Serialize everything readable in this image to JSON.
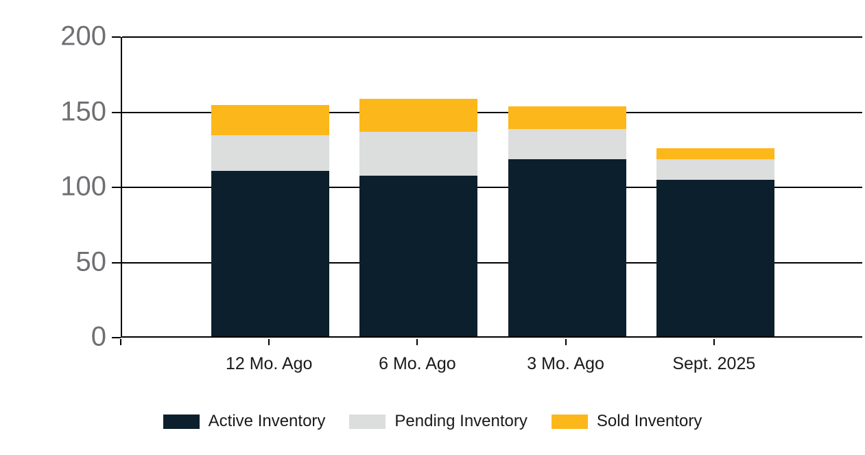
{
  "chart_data": {
    "type": "bar",
    "stacked": true,
    "title": "",
    "xlabel": "",
    "ylabel": "",
    "categories": [
      "12 Mo. Ago",
      "6 Mo. Ago",
      "3 Mo. Ago",
      "Sept. 2025"
    ],
    "series": [
      {
        "name": "Active Inventory",
        "color": "#0c1f2c",
        "values": [
          110,
          107,
          118,
          104
        ]
      },
      {
        "name": "Pending Inventory",
        "color": "#dcdddd",
        "values": [
          24,
          29,
          20,
          14
        ]
      },
      {
        "name": "Sold Inventory",
        "color": "#fcb71a",
        "values": [
          20,
          22,
          15,
          7
        ]
      }
    ],
    "totals": [
      154,
      158,
      153,
      125
    ],
    "ylim": [
      0,
      200
    ],
    "yticks": [
      0,
      50,
      100,
      150,
      200
    ],
    "ytick_labels": [
      "0",
      "50",
      "100",
      "150",
      "200"
    ],
    "grid": true,
    "legend_position": "bottom"
  },
  "legend": {
    "items": [
      {
        "label": "Active Inventory",
        "color": "#0c1f2c"
      },
      {
        "label": "Pending Inventory",
        "color": "#dcdddd"
      },
      {
        "label": "Sold Inventory",
        "color": "#fcb71a"
      }
    ]
  },
  "colors": {
    "axis": "#000000",
    "gridline": "#000000",
    "y_tick_label": "#6e6f72",
    "x_tick_label": "#1a1a1a",
    "background": "#ffffff"
  }
}
